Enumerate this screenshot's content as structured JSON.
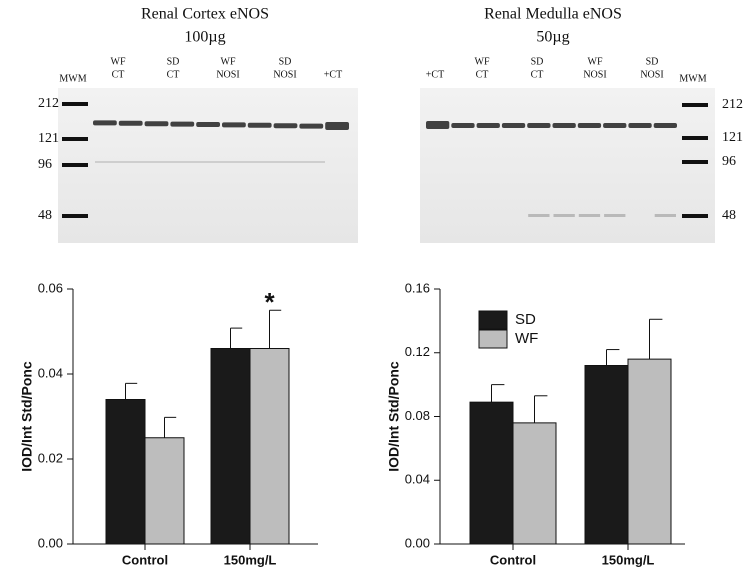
{
  "blots": [
    {
      "title": "Renal Cortex eNOS",
      "subtitle": "100µg",
      "marker_label": "MWM",
      "lanes": [
        [
          "WF",
          "CT"
        ],
        [
          "SD",
          "CT"
        ],
        [
          "WF",
          "NOSI"
        ],
        [
          "SD",
          "NOSI"
        ],
        [
          "+CT"
        ]
      ],
      "markers": [
        "212",
        "121",
        "96",
        "48"
      ]
    },
    {
      "title": "Renal Medulla eNOS",
      "subtitle": "50µg",
      "marker_label": "MWM",
      "lanes": [
        [
          "+CT"
        ],
        [
          "WF",
          "CT"
        ],
        [
          "SD",
          "CT"
        ],
        [
          "WF",
          "NOSI"
        ],
        [
          "SD",
          "NOSI"
        ]
      ],
      "markers": [
        "212",
        "121",
        "96",
        "48"
      ]
    }
  ],
  "chart_data": [
    {
      "type": "bar",
      "y_label": "IOD/Int Std/Ponc",
      "categories": [
        "Control",
        "150mg/L"
      ],
      "series": [
        {
          "color": "#1a1a1a",
          "values": [
            0.034,
            0.046
          ],
          "errors": [
            0.0038,
            0.0048
          ]
        },
        {
          "color": "#bdbdbd",
          "values": [
            0.025,
            0.046
          ],
          "errors": [
            0.0048,
            0.009
          ]
        }
      ],
      "ylim": [
        0,
        0.06
      ],
      "yticks": [
        {
          "value": 0,
          "label": "0.00"
        },
        {
          "value": 0.02,
          "label": "0.02"
        },
        {
          "value": 0.04,
          "label": "0.04"
        },
        {
          "value": 0.06,
          "label": "0.06"
        }
      ],
      "annotations": [
        "*"
      ]
    },
    {
      "type": "bar",
      "y_label": "IOD/Int Std/Ponc",
      "categories": [
        "Control",
        "150mg/L"
      ],
      "series": [
        {
          "name": "SD",
          "color": "#1a1a1a",
          "values": [
            0.089,
            0.112
          ],
          "errors": [
            0.011,
            0.01
          ]
        },
        {
          "name": "WF",
          "color": "#bdbdbd",
          "values": [
            0.076,
            0.116
          ],
          "errors": [
            0.017,
            0.025
          ]
        }
      ],
      "ylim": [
        0,
        0.16
      ],
      "yticks": [
        {
          "value": 0,
          "label": "0.00"
        },
        {
          "value": 0.04,
          "label": "0.04"
        },
        {
          "value": 0.08,
          "label": "0.08"
        },
        {
          "value": 0.12,
          "label": "0.12"
        },
        {
          "value": 0.16,
          "label": "0.16"
        }
      ],
      "legend": "upper left"
    }
  ]
}
